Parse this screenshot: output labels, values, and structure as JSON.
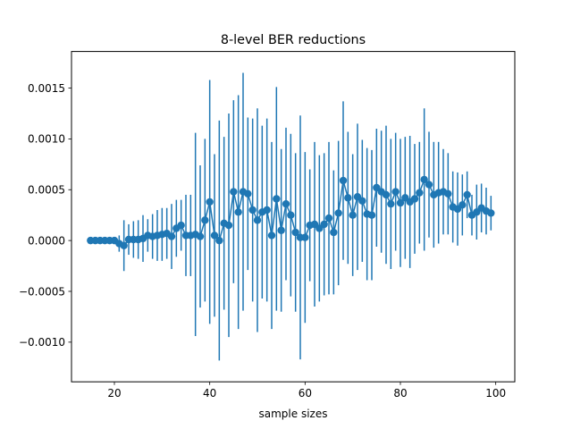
{
  "chart_data": {
    "type": "line",
    "title": "8-level BER reductions",
    "xlabel": "sample sizes",
    "ylabel": "",
    "xlim": [
      11,
      104
    ],
    "ylim": [
      -0.00139,
      0.00186
    ],
    "xticks": [
      20,
      40,
      60,
      80,
      100
    ],
    "xtick_labels": [
      "20",
      "40",
      "60",
      "80",
      "100"
    ],
    "yticks": [
      -0.001,
      -0.0005,
      0.0,
      0.0005,
      0.001,
      0.0015
    ],
    "ytick_labels": [
      "−0.0010",
      "−0.0005",
      "0.0000",
      "0.0005",
      "0.0010",
      "0.0015"
    ],
    "grid": false,
    "legend": "none",
    "colors": {
      "series": "#1f77b4",
      "axes": "#000000",
      "background": "#ffffff"
    },
    "series": [
      {
        "x": [
          15,
          16,
          17,
          18,
          19,
          20,
          21,
          22,
          23,
          24,
          25,
          26,
          27,
          28,
          29,
          30,
          31,
          32,
          33,
          34,
          35,
          36,
          37,
          38,
          39,
          40,
          41,
          42,
          43,
          44,
          45,
          46,
          47,
          48,
          49,
          50,
          51,
          52,
          53,
          54,
          55,
          56,
          57,
          58,
          59,
          60,
          61,
          62,
          63,
          64,
          65,
          66,
          67,
          68,
          69,
          70,
          71,
          72,
          73,
          74,
          75,
          76,
          77,
          78,
          79,
          80,
          81,
          82,
          83,
          84,
          85,
          86,
          87,
          88,
          89,
          90,
          91,
          92,
          93,
          94,
          95,
          96,
          97,
          98,
          99
        ],
        "y": [
          0.0,
          0.0,
          0.0,
          0.0,
          0.0,
          0.0,
          -3e-05,
          -5e-05,
          1e-05,
          1e-05,
          1e-05,
          2e-05,
          5e-05,
          4e-05,
          5e-05,
          6e-05,
          7e-05,
          4e-05,
          0.00012,
          0.00015,
          5e-05,
          5e-05,
          6e-05,
          4e-05,
          0.0002,
          0.00038,
          5e-05,
          0.0,
          0.00017,
          0.00015,
          0.00048,
          0.00028,
          0.00048,
          0.00046,
          0.0003,
          0.0002,
          0.00028,
          0.0003,
          5e-05,
          0.00041,
          0.0001,
          0.00036,
          0.00025,
          8e-05,
          3e-05,
          3e-05,
          0.00015,
          0.00016,
          0.00012,
          0.00016,
          0.00022,
          8e-05,
          0.00027,
          0.00059,
          0.00042,
          0.00025,
          0.00043,
          0.00039,
          0.00026,
          0.00025,
          0.00052,
          0.00048,
          0.00045,
          0.00036,
          0.00048,
          0.00037,
          0.00042,
          0.00038,
          0.00041,
          0.00047,
          0.0006,
          0.00055,
          0.00045,
          0.00047,
          0.00048,
          0.00046,
          0.00033,
          0.00031,
          0.00035,
          0.00045,
          0.00025,
          0.00028,
          0.00032,
          0.00029,
          0.00027
        ],
        "err": [
          0.0,
          0.0,
          0.0,
          0.0,
          0.0,
          2e-05,
          8e-05,
          0.00025,
          0.00015,
          0.00018,
          0.00019,
          0.00023,
          0.00016,
          0.00022,
          0.00025,
          0.00026,
          0.00025,
          0.00032,
          0.00028,
          0.00025,
          0.0004,
          0.0004,
          0.001,
          0.0007,
          0.0008,
          0.0012,
          0.0008,
          0.00118,
          0.00085,
          0.0011,
          0.0009,
          0.00115,
          0.00117,
          0.00075,
          0.0009,
          0.0011,
          0.00085,
          0.0009,
          0.00092,
          0.0011,
          0.0008,
          0.00075,
          0.0008,
          0.00078,
          0.0012,
          0.00084,
          0.00055,
          0.00081,
          0.00072,
          0.0007,
          0.00075,
          0.00061,
          0.00071,
          0.00078,
          0.00065,
          0.0006,
          0.00072,
          0.0006,
          0.00065,
          0.00064,
          0.00058,
          0.0006,
          0.00068,
          0.00064,
          0.00058,
          0.00063,
          0.0006,
          0.00065,
          0.00054,
          0.0005,
          0.0007,
          0.00052,
          0.00052,
          0.0005,
          0.00042,
          0.0004,
          0.00035,
          0.00036,
          0.0003,
          0.00023,
          0.0002,
          0.00027,
          0.00024,
          0.00023,
          0.00017
        ]
      }
    ]
  }
}
